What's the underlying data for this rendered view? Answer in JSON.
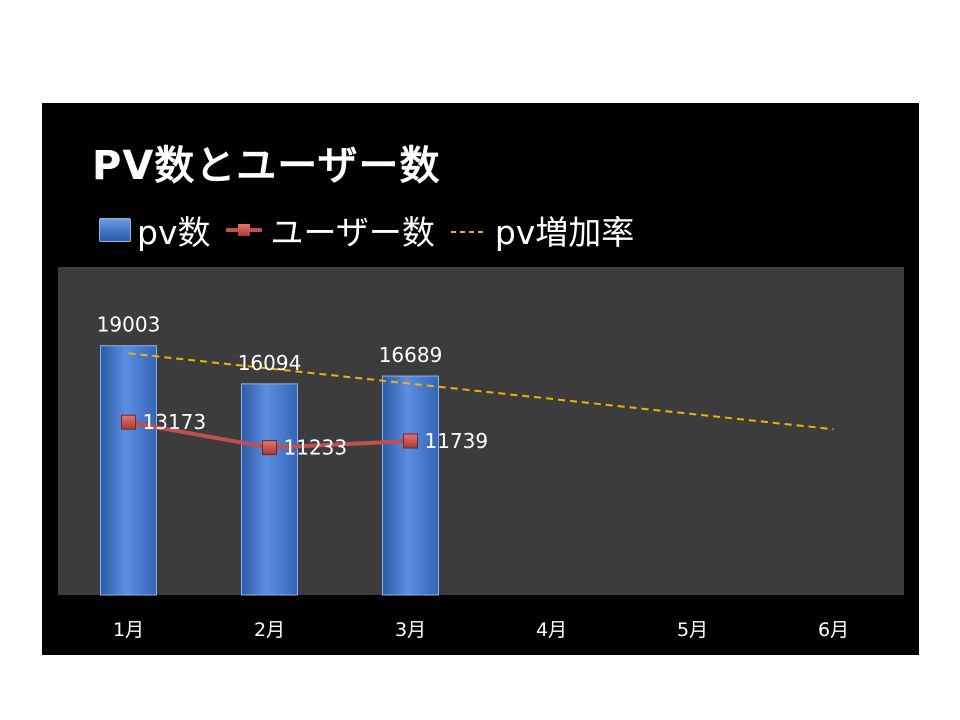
{
  "chart_data": {
    "type": "bar",
    "title": "PV数とユーザー数",
    "categories": [
      "1月",
      "2月",
      "3月",
      "4月",
      "5月",
      "6月"
    ],
    "series": [
      {
        "name": "pv数",
        "type": "bar",
        "values": [
          19003,
          16094,
          16689,
          null,
          null,
          null
        ]
      },
      {
        "name": "ユーザー数",
        "type": "line",
        "values": [
          13173,
          11233,
          11739,
          null,
          null,
          null
        ]
      },
      {
        "name": "pv増加率",
        "type": "trendline",
        "style": "dashed"
      }
    ],
    "ylim": [
      0,
      25000
    ],
    "legend_position": "top",
    "grid": false
  },
  "colors": {
    "frame_bg": "#000000",
    "plot_bg": "#3c3c3c",
    "bar": "#4a7dd0",
    "line": "#c0504d",
    "trend": "#f0b400",
    "text": "#ffffff"
  }
}
